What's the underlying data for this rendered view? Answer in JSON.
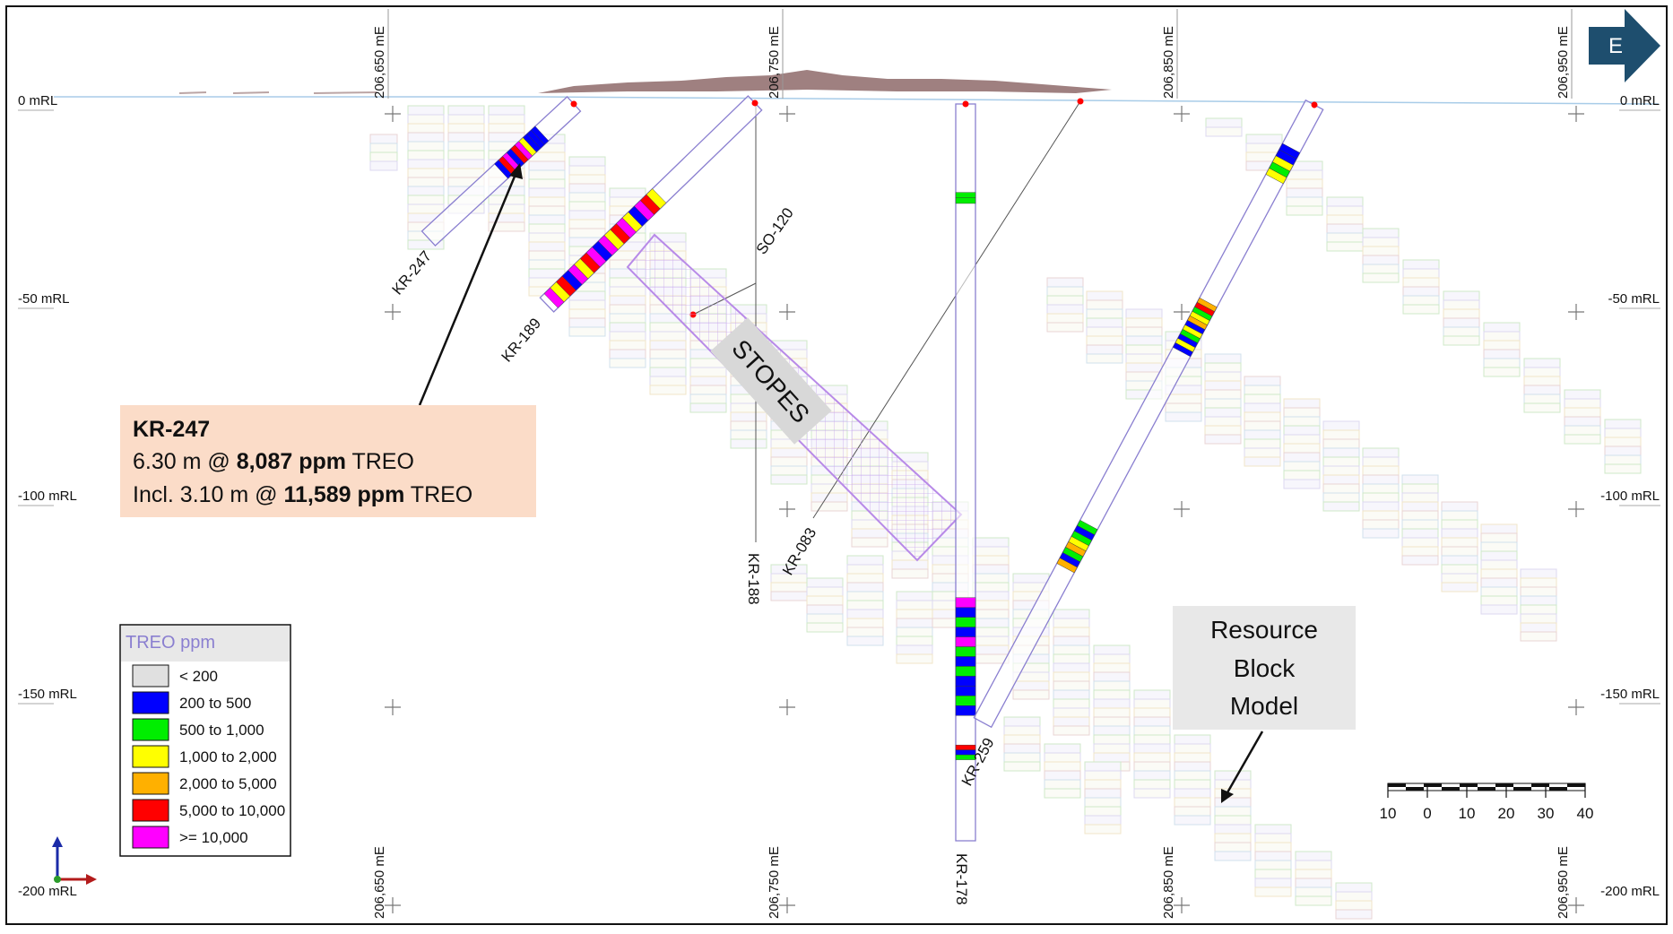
{
  "easting_labels": [
    "206,650 mE",
    "206,750 mE",
    "206,850 mE",
    "206,950 mE"
  ],
  "rl_labels": [
    "0 mRL",
    "-50 mRL",
    "-100 mRL",
    "-150 mRL",
    "-200 mRL"
  ],
  "north_arrow": {
    "label": "E"
  },
  "holes": [
    {
      "name": "KR-247"
    },
    {
      "name": "KR-189"
    },
    {
      "name": "SO-120"
    },
    {
      "name": "KR-188"
    },
    {
      "name": "KR-178"
    },
    {
      "name": "KR-083"
    },
    {
      "name": "KR-259"
    }
  ],
  "stopes": {
    "label": "STOPES"
  },
  "callout": {
    "title": "KR-247",
    "line1_pre": "6.30 m @ ",
    "line1_bold": "8,087 ppm",
    "line1_post": " TREO",
    "line2_pre": "Incl. 3.10 m @ ",
    "line2_bold": "11,589 ppm",
    "line2_post": " TREO"
  },
  "resource_box": {
    "lines": [
      "Resource",
      "Block",
      "Model"
    ]
  },
  "legend": {
    "title": "TREO ppm",
    "items": [
      {
        "label": "< 200",
        "color": "#e0e0e0"
      },
      {
        "label": "200 to 500",
        "color": "#0000ff"
      },
      {
        "label": "500 to 1,000",
        "color": "#00ee00"
      },
      {
        "label": "1,000 to 2,000",
        "color": "#ffff00"
      },
      {
        "label": "2,000 to 5,000",
        "color": "#ffb000"
      },
      {
        "label": "5,000 to 10,000",
        "color": "#ff0000"
      },
      {
        "label": ">= 10,000",
        "color": "#ff00ff"
      }
    ]
  },
  "scale_bar": {
    "labels": [
      "10",
      "0",
      "10",
      "20",
      "30",
      "40"
    ]
  },
  "colors": {
    "hole_outline": "#8a7fd0",
    "stope_outline": "#b88ae8",
    "terrain": "#8e6a6a",
    "surface_line": "#a8cce8",
    "callout_bg": "#fbdcc8",
    "label_box_bg": "#e8e8e8",
    "arrow_bg": "#1e4e6e"
  }
}
